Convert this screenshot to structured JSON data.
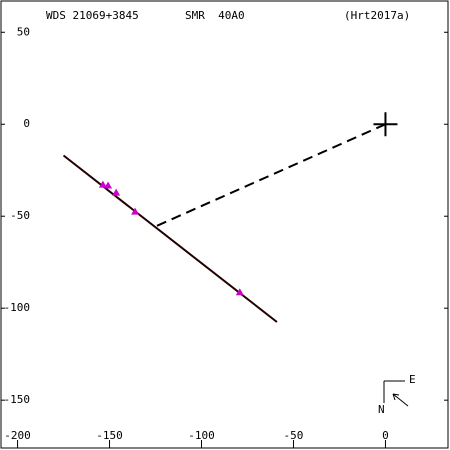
{
  "chart_data": {
    "type": "scatter",
    "title": "WDS 21069+3845",
    "subtitle": "SMR  40A0",
    "annotation": "(Hrt2017a)",
    "compass": {
      "east": "E",
      "north": "N"
    },
    "xlim": [
      -209,
      34
    ],
    "ylim": [
      -176,
      67
    ],
    "xticks": [
      -200,
      -150,
      -100,
      -50,
      0
    ],
    "yticks": [
      50,
      0,
      -50,
      -100,
      -150
    ],
    "series": [
      {
        "style": "solid",
        "color": "#220000",
        "x": [
          -175,
          -59
        ],
        "y": [
          -17,
          -107.5
        ]
      },
      {
        "style": "dashed",
        "color": "#000000",
        "x": [
          0,
          -126
        ],
        "y": [
          0,
          -56
        ]
      },
      {
        "style": "plus",
        "color": "#000000",
        "x": [
          0
        ],
        "y": [
          0
        ]
      },
      {
        "style": "triangle",
        "color": "#cc00cc",
        "x": [
          -153.6,
          -150.8,
          -146.4,
          -136.1,
          -79.2
        ],
        "y": [
          -32.8,
          -33.3,
          -37.2,
          -47.5,
          -91.3
        ]
      }
    ]
  }
}
